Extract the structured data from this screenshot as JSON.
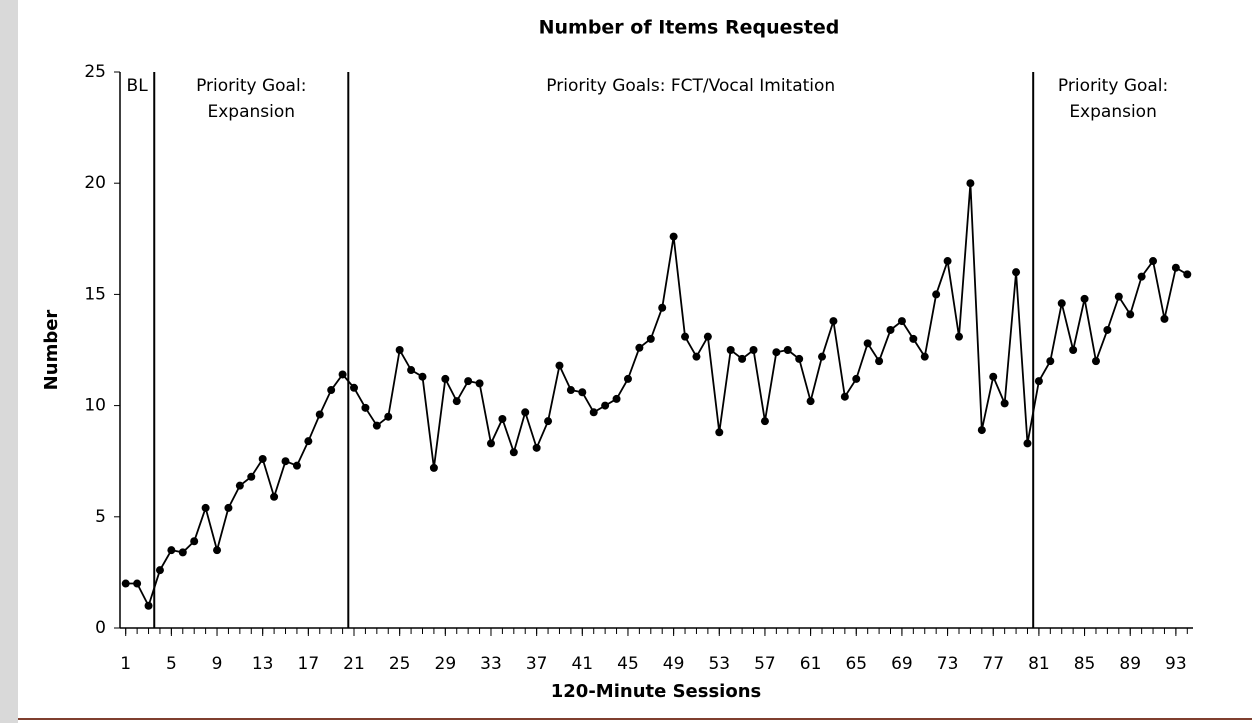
{
  "chart_data": {
    "type": "line",
    "title": "Number of Items Requested",
    "x_label": "120-Minute Sessions",
    "y_label": "Number",
    "x": [
      1,
      2,
      3,
      4,
      5,
      6,
      7,
      8,
      9,
      10,
      11,
      12,
      13,
      14,
      15,
      16,
      17,
      18,
      19,
      20,
      21,
      22,
      23,
      24,
      25,
      26,
      27,
      28,
      29,
      30,
      31,
      32,
      33,
      34,
      35,
      36,
      37,
      38,
      39,
      40,
      41,
      42,
      43,
      44,
      45,
      46,
      47,
      48,
      49,
      50,
      51,
      52,
      53,
      54,
      55,
      56,
      57,
      58,
      59,
      60,
      61,
      62,
      63,
      64,
      65,
      66,
      67,
      68,
      69,
      70,
      71,
      72,
      73,
      74,
      75,
      76,
      77,
      78,
      79,
      80,
      81,
      82,
      83,
      84,
      85,
      86,
      87,
      88,
      89,
      90,
      91,
      92,
      93,
      94
    ],
    "series": [
      {
        "name": "Items Requested",
        "color": "#000000",
        "values": [
          2.0,
          2.0,
          1.0,
          2.6,
          3.5,
          3.4,
          3.9,
          5.4,
          3.5,
          5.4,
          6.4,
          6.8,
          7.6,
          5.9,
          7.5,
          7.3,
          8.4,
          9.6,
          10.7,
          11.4,
          10.8,
          9.9,
          9.1,
          9.5,
          12.5,
          11.6,
          11.3,
          7.2,
          11.2,
          10.2,
          11.1,
          11.0,
          8.3,
          9.4,
          7.9,
          9.7,
          8.1,
          9.3,
          11.8,
          10.7,
          10.6,
          9.7,
          10.0,
          10.3,
          11.2,
          12.6,
          13.0,
          14.4,
          17.6,
          13.1,
          12.2,
          13.1,
          8.8,
          12.5,
          12.1,
          12.5,
          9.3,
          12.4,
          12.5,
          12.1,
          10.2,
          12.2,
          13.8,
          10.4,
          11.2,
          12.8,
          12.0,
          13.4,
          13.8,
          13.0,
          12.2,
          15.0,
          16.5,
          13.1,
          20.0,
          8.9,
          11.3,
          10.1,
          16.0,
          8.3,
          11.1,
          12.0,
          14.6,
          12.5,
          14.8,
          12.0,
          13.4,
          14.9,
          14.1,
          15.8,
          16.5,
          13.9,
          16.2,
          15.9
        ]
      }
    ],
    "xlim": [
      0.5,
      94.5
    ],
    "xticks": [
      1,
      5,
      9,
      13,
      17,
      21,
      25,
      29,
      33,
      37,
      41,
      45,
      49,
      53,
      57,
      61,
      65,
      69,
      73,
      77,
      81,
      85,
      89,
      93
    ],
    "ylim": [
      0,
      25
    ],
    "yticks": [
      0,
      5,
      10,
      15,
      20,
      25
    ],
    "phase_lines": [
      3.5,
      20.5,
      80.5
    ],
    "phases": [
      {
        "lines": [
          "BL"
        ]
      },
      {
        "lines": [
          "Priority Goal:",
          "Expansion"
        ]
      },
      {
        "lines": [
          "Priority Goals: FCT/Vocal Imitation"
        ]
      },
      {
        "lines": [
          "Priority Goal:",
          "Expansion"
        ]
      }
    ]
  }
}
